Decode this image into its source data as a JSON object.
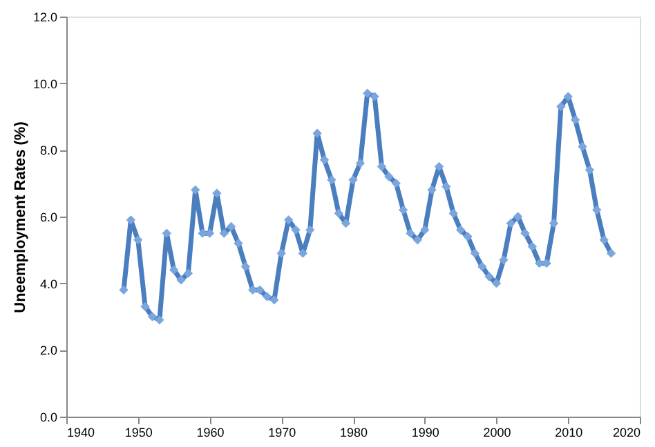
{
  "chart_data": {
    "type": "line",
    "ylabel": "Uneemployment Rates (%)",
    "x": [
      1948,
      1949,
      1950,
      1951,
      1952,
      1953,
      1954,
      1955,
      1956,
      1957,
      1958,
      1959,
      1960,
      1961,
      1962,
      1963,
      1964,
      1965,
      1966,
      1967,
      1968,
      1969,
      1970,
      1971,
      1972,
      1973,
      1974,
      1975,
      1976,
      1977,
      1978,
      1979,
      1980,
      1981,
      1982,
      1983,
      1984,
      1985,
      1986,
      1987,
      1988,
      1989,
      1990,
      1991,
      1992,
      1993,
      1994,
      1995,
      1996,
      1997,
      1998,
      1999,
      2000,
      2001,
      2002,
      2003,
      2004,
      2005,
      2006,
      2007,
      2008,
      2009,
      2010,
      2011,
      2012,
      2013,
      2014,
      2015,
      2016
    ],
    "series": [
      {
        "color": "#4a7ebf",
        "values": [
          3.8,
          5.9,
          5.3,
          3.3,
          3.0,
          2.9,
          5.5,
          4.4,
          4.1,
          4.3,
          6.8,
          5.5,
          5.5,
          6.7,
          5.5,
          5.7,
          5.2,
          4.5,
          3.8,
          3.8,
          3.6,
          3.5,
          4.9,
          5.9,
          5.6,
          4.9,
          5.6,
          8.5,
          7.7,
          7.1,
          6.1,
          5.8,
          7.1,
          7.6,
          9.7,
          9.6,
          7.5,
          7.2,
          7.0,
          6.2,
          5.5,
          5.3,
          5.6,
          6.8,
          7.5,
          6.9,
          6.1,
          5.6,
          5.4,
          4.9,
          4.5,
          4.2,
          4.0,
          4.7,
          5.8,
          6.0,
          5.5,
          5.1,
          4.6,
          4.6,
          5.8,
          9.3,
          9.6,
          8.9,
          8.1,
          7.4,
          6.2,
          5.3,
          4.9
        ]
      }
    ],
    "xlim": [
      1940,
      2020
    ],
    "xticks": [
      1940,
      1950,
      1960,
      1970,
      1980,
      1990,
      2000,
      2010,
      2020
    ],
    "ylim": [
      0,
      12
    ],
    "yticks": [
      {
        "value": 0,
        "label": "0.0"
      },
      {
        "value": 2,
        "label": "2.0"
      },
      {
        "value": 4,
        "label": "4.0"
      },
      {
        "value": 6,
        "label": "6.0"
      },
      {
        "value": 8,
        "label": "8.0"
      },
      {
        "value": 10,
        "label": "10.0"
      },
      {
        "value": 12,
        "label": "12.0"
      }
    ],
    "grid": false,
    "marker": "diamond",
    "line_style": "solid"
  }
}
